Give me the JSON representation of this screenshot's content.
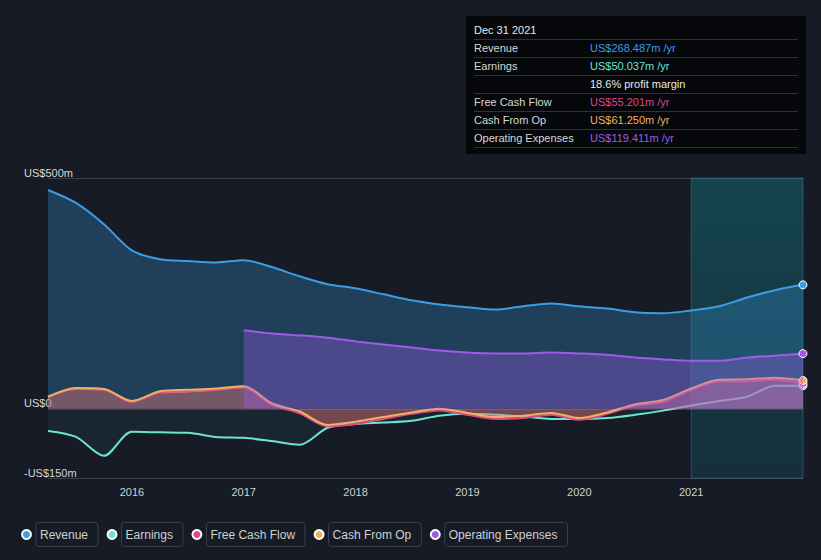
{
  "chart_data": {
    "type": "line",
    "x": [
      2015.25,
      2015.5,
      2015.75,
      2016,
      2016.25,
      2016.5,
      2016.75,
      2017,
      2017.25,
      2017.5,
      2017.75,
      2018,
      2018.25,
      2018.5,
      2018.75,
      2019,
      2019.25,
      2019.5,
      2019.75,
      2020,
      2020.25,
      2020.5,
      2020.75,
      2021,
      2021.25,
      2021.5,
      2021.75,
      2022
    ],
    "series": [
      {
        "name": "Revenue",
        "color": "#3a9ee4",
        "values": [
          474,
          446,
          400,
          343,
          324,
          320,
          317,
          322,
          307,
          287,
          270,
          261,
          248,
          235,
          226,
          220,
          215,
          222,
          228,
          222,
          217,
          209,
          207,
          213,
          222,
          241,
          257,
          268.487
        ]
      },
      {
        "name": "Earnings",
        "color": "#6ce5d0",
        "values": [
          -48,
          -61,
          -102,
          -50,
          -51,
          -52,
          -61,
          -63,
          -70,
          -78,
          -41,
          -33,
          -30,
          -26,
          -15,
          -11,
          -13,
          -17,
          -22,
          -22,
          -20,
          -13,
          -4,
          7,
          17,
          26,
          50,
          50.037
        ]
      },
      {
        "name": "Free Cash Flow",
        "color": "#d9498c",
        "values": [
          26,
          43,
          41,
          15,
          35,
          37,
          41,
          46,
          9,
          -10,
          -38,
          -33,
          -22,
          -11,
          -4,
          -13,
          -22,
          -20,
          -13,
          -24,
          -11,
          7,
          15,
          41,
          59,
          59,
          63,
          55.201
        ]
      },
      {
        "name": "Cash From Op",
        "color": "#f0b062",
        "values": [
          26,
          45,
          43,
          17,
          38,
          41,
          44,
          49,
          12,
          -6,
          -35,
          -28,
          -18,
          -8,
          0,
          -9,
          -18,
          -15,
          -9,
          -20,
          -8,
          10,
          19,
          44,
          63,
          64,
          67,
          61.25
        ]
      },
      {
        "name": "Operating Expenses",
        "color": "#9e5be8",
        "values": [
          null,
          null,
          null,
          null,
          null,
          null,
          null,
          170,
          163,
          159,
          154,
          146,
          139,
          133,
          126,
          122,
          120,
          120,
          122,
          120,
          117,
          111,
          107,
          104,
          104,
          111,
          115,
          119.411
        ]
      }
    ],
    "xlim": [
      2015.25,
      2022
    ],
    "xticks": [
      2016,
      2017,
      2018,
      2019,
      2020,
      2021
    ],
    "ylim": [
      -150,
      500
    ],
    "yticks": [
      {
        "value": -150,
        "label": "-US$150m"
      },
      {
        "value": 0,
        "label": "US$0"
      },
      {
        "value": 500,
        "label": "US$500m"
      }
    ],
    "grid": true,
    "legend": "bottom-left",
    "highlight_range": [
      2021,
      2022
    ],
    "info_box": {
      "title": "Dec 31 2021",
      "rows": [
        {
          "label": "Revenue",
          "value": "US$268.487m /yr"
        },
        {
          "label": "Earnings",
          "value": "US$50.037m /yr"
        },
        {
          "text": "18.6% profit margin"
        },
        {
          "label": "Free Cash Flow",
          "value": "US$55.201m /yr"
        },
        {
          "label": "Cash From Op",
          "value": "US$61.250m /yr"
        },
        {
          "label": "Operating Expenses",
          "value": "US$119.411m /yr"
        }
      ]
    }
  }
}
